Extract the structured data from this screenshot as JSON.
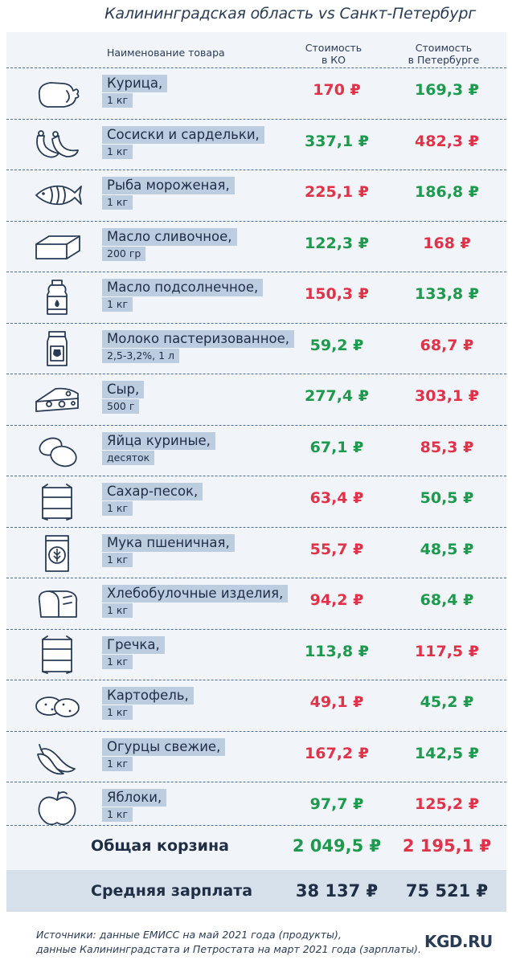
{
  "title": "Калининградская область vs Санкт-Петербург",
  "header": {
    "name": "Наименование товара",
    "ko_line1": "Стоимость",
    "ko_line2": "в КО",
    "spb_line1": "Стоимость",
    "spb_line2": "в Петербурге"
  },
  "items": [
    {
      "name": "Курица,",
      "unit": "1 кг",
      "ko": "170 ₽",
      "spb": "169,3 ₽",
      "icon": "chicken-icon"
    },
    {
      "name": "Сосиски и сардельки,",
      "unit": "1 кг",
      "ko": "337,1 ₽",
      "spb": "482,3 ₽",
      "icon": "sausages-icon"
    },
    {
      "name": "Рыба мороженая,",
      "unit": "1 кг",
      "ko": "225,1 ₽",
      "spb": "186,8 ₽",
      "icon": "fish-icon"
    },
    {
      "name": "Масло сливочное,",
      "unit": "200 гр",
      "ko": "122,3 ₽",
      "spb": "168 ₽",
      "icon": "butter-icon"
    },
    {
      "name": "Масло подсолнечное,",
      "unit": "1 кг",
      "ko": "150,3 ₽",
      "spb": "133,8 ₽",
      "icon": "oil-bottle-icon"
    },
    {
      "name": "Молоко пастеризованное,",
      "unit": "2,5-3,2%, 1 л",
      "ko": "59,2 ₽",
      "spb": "68,7 ₽",
      "icon": "milk-carton-icon"
    },
    {
      "name": "Сыр,",
      "unit": "500 г",
      "ko": "277,4 ₽",
      "spb": "303,1 ₽",
      "icon": "cheese-icon"
    },
    {
      "name": "Яйца куриные,",
      "unit": "десяток",
      "ko": "67,1 ₽",
      "spb": "85,3 ₽",
      "icon": "eggs-icon"
    },
    {
      "name": "Сахар-песок,",
      "unit": "1 кг",
      "ko": "63,4 ₽",
      "spb": "50,5 ₽",
      "icon": "sugar-sack-icon"
    },
    {
      "name": "Мука пшеничная,",
      "unit": "1 кг",
      "ko": "55,7 ₽",
      "spb": "48,5 ₽",
      "icon": "flour-bag-icon"
    },
    {
      "name": "Хлебобулочные изделия,",
      "unit": "1 кг",
      "ko": "94,2 ₽",
      "spb": "68,4 ₽",
      "icon": "bread-icon"
    },
    {
      "name": "Гречка,",
      "unit": "1 кг",
      "ko": "113,8 ₽",
      "spb": "117,5 ₽",
      "icon": "buckwheat-sack-icon"
    },
    {
      "name": "Картофель,",
      "unit": "1 кг",
      "ko": "49,1 ₽",
      "spb": "45,2 ₽",
      "icon": "potato-icon"
    },
    {
      "name": "Огурцы свежие,",
      "unit": "1 кг",
      "ko": "167,2 ₽",
      "spb": "142,5 ₽",
      "icon": "cucumber-icon"
    },
    {
      "name": "Яблоки,",
      "unit": "1 кг",
      "ko": "97,7 ₽",
      "spb": "125,2 ₽",
      "icon": "apple-icon"
    }
  ],
  "ko_colors": [
    "red",
    "green",
    "red",
    "green",
    "red",
    "green",
    "green",
    "green",
    "red",
    "red",
    "red",
    "green",
    "red",
    "red",
    "green"
  ],
  "spb_colors": [
    "green",
    "red",
    "green",
    "red",
    "green",
    "red",
    "red",
    "red",
    "green",
    "green",
    "green",
    "red",
    "green",
    "green",
    "red"
  ],
  "total": {
    "label": "Общая корзина",
    "ko": "2 049,5 ₽",
    "spb": "2 195,1 ₽",
    "ko_color": "green",
    "spb_color": "red"
  },
  "salary": {
    "label": "Средняя зарплата",
    "ko": "38 137 ₽",
    "spb": "75 521 ₽"
  },
  "source_line1": "Источники: данные ЕМИСС на май 2021 года (продукты),",
  "source_line2": "данные Калининградстата и Петростата на март 2021 года (зарплаты).",
  "brand": "KGD.RU",
  "colors": {
    "red": "#e0334a",
    "green": "#1e9a4f",
    "label_bg": "#bccde0",
    "panel_bg": "#f1f4f8",
    "text": "#2a3b55"
  }
}
